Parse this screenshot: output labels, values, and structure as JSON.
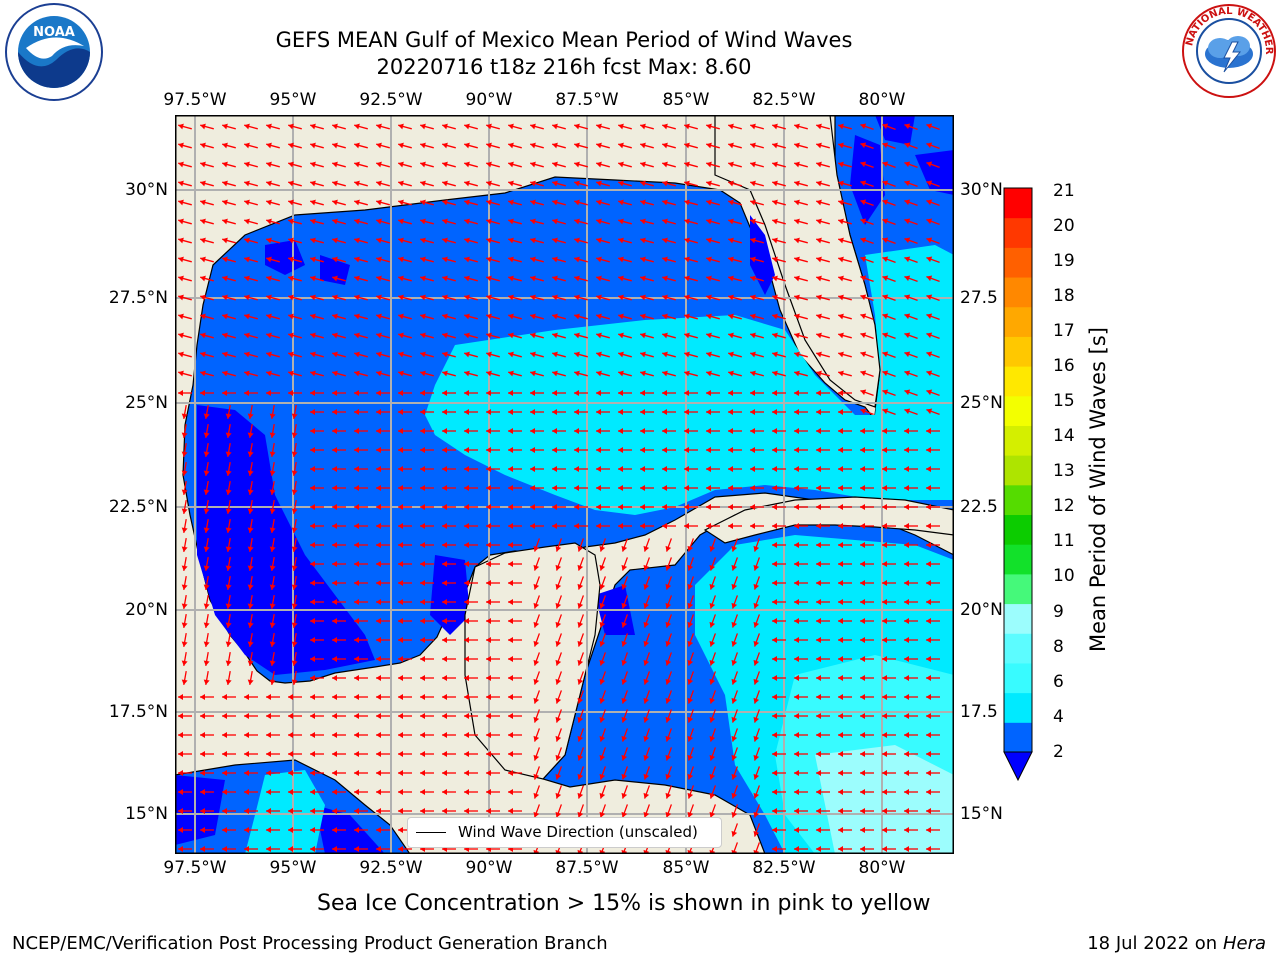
{
  "title": {
    "line1": "GEFS MEAN Gulf of Mexico Mean Period of Wind Waves",
    "line2": "20220716 t18z 216h fcst   Max: 8.60"
  },
  "logos": {
    "left": "noara-logo",
    "right": "nws-logo"
  },
  "map": {
    "lon_ticks_top": [
      "97.5°W",
      "95°W",
      "92.5°W",
      "90°W",
      "87.5°W",
      "85°W",
      "82.5°W",
      "80°W"
    ],
    "lon_ticks_bottom": [
      "97.5°W",
      "95°W",
      "92.5°W",
      "90°W",
      "87.5°W",
      "85°W",
      "82.5°W",
      "80°W"
    ],
    "lat_ticks_left": [
      "30°N",
      "27.5°N",
      "25°N",
      "22.5°N",
      "20°N",
      "17.5°N",
      "15°N"
    ],
    "lat_ticks_right": [
      "30°N",
      "27.5",
      "25°N",
      "22.5",
      "20°N",
      "17.5",
      "15°N"
    ],
    "legend_label": "Wind Wave Direction (unscaled)",
    "land_color": "#efedde",
    "arrow_color": "#ff0000"
  },
  "colorbar": {
    "label": "Mean Period of Wind Waves [s]",
    "ticks": [
      "21",
      "20",
      "19",
      "18",
      "17",
      "16",
      "15",
      "14",
      "13",
      "12",
      "11",
      "10",
      "9",
      "8",
      "6",
      "4",
      "2"
    ],
    "colors": [
      "#0064ff",
      "#00eaff",
      "#38fbff",
      "#5cfcff",
      "#9cfdfd",
      "#45f97a",
      "#12e12a",
      "#0ccc00",
      "#55dc00",
      "#aee400",
      "#d4ef00",
      "#f3ff00",
      "#ffe800",
      "#ffc800",
      "#ffa800",
      "#ff8800",
      "#ff6000",
      "#ff3800",
      "#ff0000"
    ],
    "extend_color": "#0000ff"
  },
  "chart_data": {
    "type": "heatmap",
    "title": "GEFS MEAN Gulf of Mexico Mean Period of Wind Waves",
    "subtitle": "20220716 t18z 216h fcst   Max: 8.60",
    "colorbar_label": "Mean Period of Wind Waves [s]",
    "x_range_deg": [
      -98.3,
      -78.7
    ],
    "y_range_deg": [
      14,
      31.7
    ],
    "max_value": 8.6,
    "levels": [
      2,
      4,
      6,
      8,
      9,
      10,
      11,
      12,
      13,
      14,
      15,
      16,
      17,
      18,
      19,
      20,
      21
    ]
  },
  "notes": {
    "sea_ice": "Sea Ice Concentration > 15% is shown in pink to yellow"
  },
  "footer": {
    "left": "NCEP/EMC/Verification Post Processing Product Generation Branch",
    "right_date": "18 Jul 2022 on ",
    "right_machine": "Hera"
  }
}
